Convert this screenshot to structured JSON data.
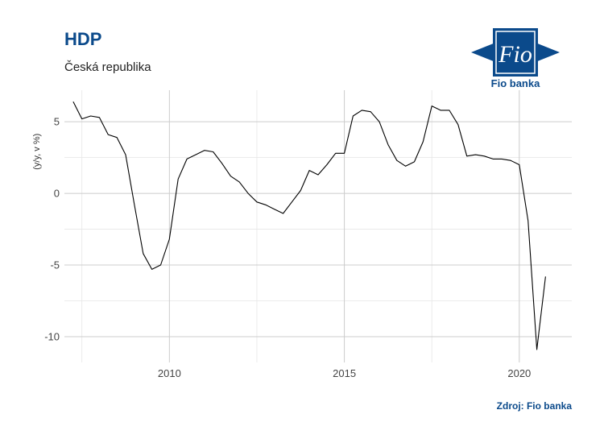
{
  "header": {
    "title": "HDP",
    "subtitle": "Česká republika",
    "source": "Zdroj: Fio banka"
  },
  "logo": {
    "mark_text": "Fio",
    "name": "Fio banka",
    "color": "#0b4a8b"
  },
  "colors": {
    "brand": "#0b4a8b",
    "line": "#000000",
    "grid_major": "#cccccc",
    "grid_minor": "#e6e6e6"
  },
  "chart_data": {
    "type": "line",
    "title": "HDP",
    "subtitle": "Česká republika",
    "xlabel": "",
    "ylabel": "(y/y, v %)",
    "xlim": [
      2007.0,
      2021.5
    ],
    "ylim": [
      -11.8,
      7.2
    ],
    "x_ticks": [
      2010,
      2015,
      2020
    ],
    "x_tick_labels": [
      "2010",
      "2015",
      "2020"
    ],
    "y_ticks": [
      -10,
      -5,
      0,
      5
    ],
    "y_tick_labels": [
      "-10",
      "-5",
      "0",
      "5"
    ],
    "grid": true,
    "legend": "none",
    "series": [
      {
        "x": [
          2007.25,
          2007.5,
          2007.75,
          2008.0,
          2008.25,
          2008.5,
          2008.75,
          2009.0,
          2009.25,
          2009.5,
          2009.75,
          2010.0,
          2010.25,
          2010.5,
          2010.75,
          2011.0,
          2011.25,
          2011.5,
          2011.75,
          2012.0,
          2012.25,
          2012.5,
          2012.75,
          2013.0,
          2013.25,
          2013.5,
          2013.75,
          2014.0,
          2014.25,
          2014.5,
          2014.75,
          2015.0,
          2015.25,
          2015.5,
          2015.75,
          2016.0,
          2016.25,
          2016.5,
          2016.75,
          2017.0,
          2017.25,
          2017.5,
          2017.75,
          2018.0,
          2018.25,
          2018.5,
          2018.75,
          2019.0,
          2019.25,
          2019.5,
          2019.75,
          2020.0,
          2020.25,
          2020.5,
          2020.75
        ],
        "y": [
          6.4,
          5.2,
          5.4,
          5.3,
          4.1,
          3.9,
          2.7,
          -0.8,
          -4.2,
          -5.3,
          -5.0,
          -3.2,
          1.0,
          2.4,
          2.7,
          3.0,
          2.9,
          2.1,
          1.2,
          0.8,
          0.0,
          -0.6,
          -0.8,
          -1.1,
          -1.4,
          -0.6,
          0.2,
          1.6,
          1.3,
          2.0,
          2.8,
          2.8,
          5.4,
          5.8,
          5.7,
          5.0,
          3.4,
          2.3,
          1.9,
          2.2,
          3.6,
          6.1,
          5.8,
          5.8,
          4.8,
          2.6,
          2.7,
          2.6,
          2.4,
          2.4,
          2.3,
          2.0,
          -1.9,
          -10.9,
          -5.8
        ]
      }
    ]
  }
}
